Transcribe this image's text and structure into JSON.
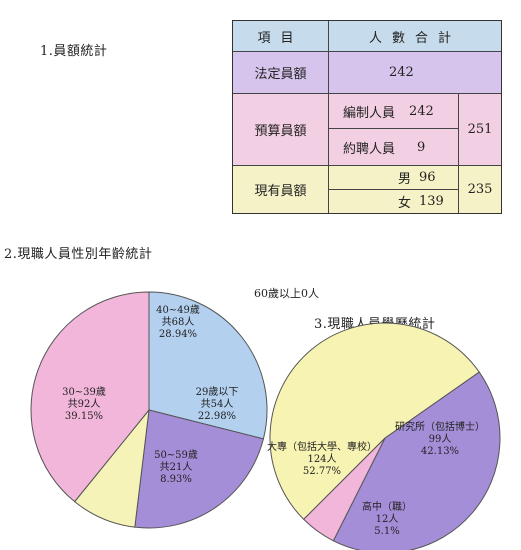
{
  "headings": {
    "section1": "1.員額統計",
    "section2": "2.現職人員性別年齡統計",
    "section3": "3.現職人員學歷統計"
  },
  "extra_note": "60歲以上0人",
  "staff_table": {
    "header": {
      "item": "項目",
      "count": "人數合計"
    },
    "statutory": {
      "label": "法定員額",
      "value": "242"
    },
    "budgeted": {
      "label": "預算員額",
      "rows": [
        {
          "name": "編制人員",
          "value": "242"
        },
        {
          "name": "約聘人員",
          "value": "9"
        }
      ],
      "total": "251"
    },
    "current": {
      "label": "現有員額",
      "rows": [
        {
          "name": "男",
          "value": "96"
        },
        {
          "name": "女",
          "value": "139"
        }
      ],
      "total": "235"
    }
  },
  "chart_data": [
    {
      "type": "pie",
      "title": "2.現職人員性別年齡統計",
      "slices": [
        {
          "label": "40~49歲",
          "count": "共68人",
          "pct": "28.94%",
          "value": 28.94,
          "color": "#b3d0ef"
        },
        {
          "label": "29歲以下",
          "count": "共54人",
          "pct": "22.98%",
          "value": 22.98,
          "color": "#a58ed8"
        },
        {
          "label": "50~59歲",
          "count": "共21人",
          "pct": "8.93%",
          "value": 8.93,
          "color": "#f5f3b8"
        },
        {
          "label": "30~39歲",
          "count": "共92人",
          "pct": "39.15%",
          "value": 39.15,
          "color": "#f1b6da"
        }
      ],
      "note": "60歲以上0人"
    },
    {
      "type": "pie",
      "title": "3.現職人員學歷統計",
      "slices": [
        {
          "label": "研究所（包括博士）",
          "count": "99人",
          "pct": "42.13%",
          "value": 42.13,
          "color": "#a58ed8"
        },
        {
          "label": "高中（職）",
          "count": "12人",
          "pct": "5.1%",
          "value": 5.1,
          "color": "#f1b6da"
        },
        {
          "label": "大專（包括大學、專校）",
          "count": "124人",
          "pct": "52.77%",
          "value": 52.77,
          "color": "#f7f3b3"
        }
      ]
    }
  ]
}
